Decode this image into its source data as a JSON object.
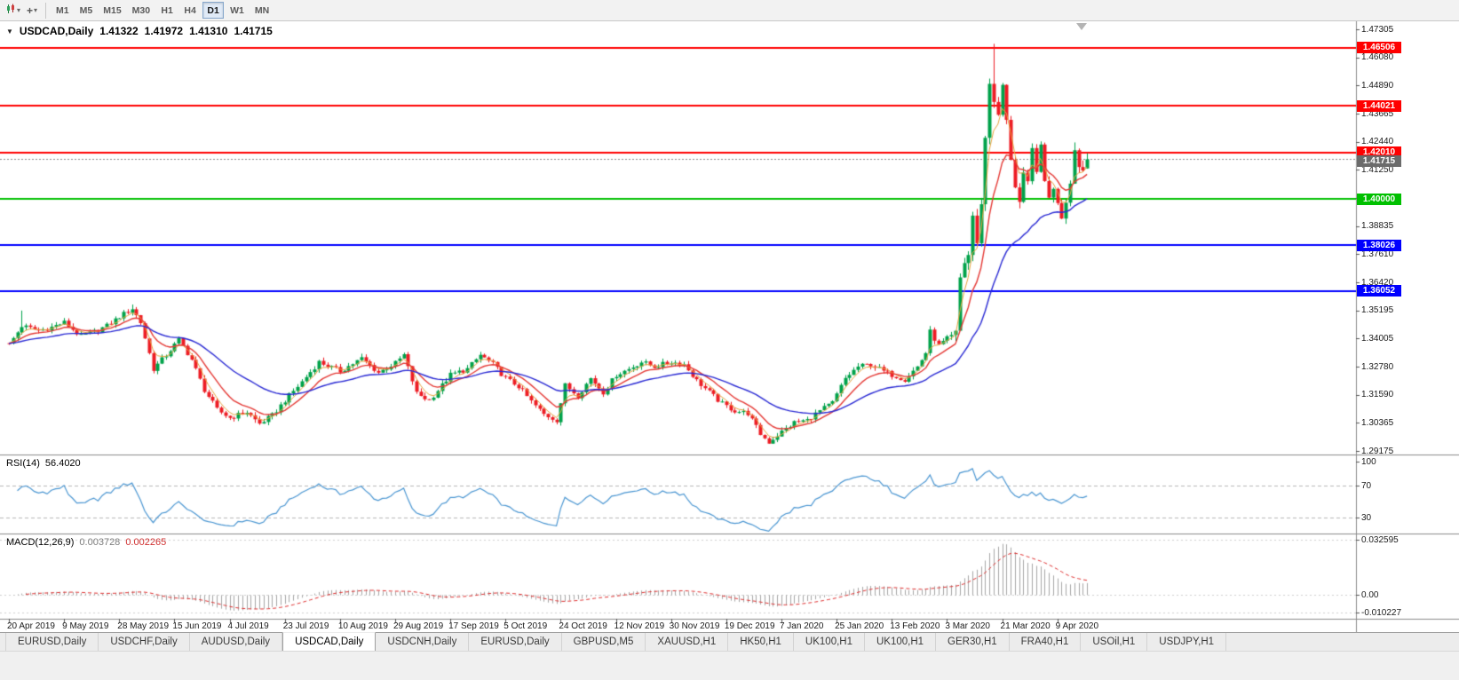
{
  "colors": {
    "candle_up": "#00A24A",
    "candle_down": "#ED1C24",
    "ma_fast": "#E8A33D",
    "ma_mid": "#E53935",
    "ma_slow": "#2A2AD4",
    "rsi_line": "#4A96D2",
    "rsi_level_dash": "#B8B8B8",
    "macd_hist": "#A6A6A6",
    "macd_signal": "#E03030",
    "line_red": "#FF0000",
    "line_green": "#00C000",
    "line_blue": "#0000FF",
    "current_price_tag": "#6B6B6B",
    "separator": "#8C8C8C"
  },
  "toolbar": {
    "icons": {
      "chart_type_caret": "▾",
      "cursor_caret": "▾",
      "crosshair_glyph": "+"
    },
    "timeframes": [
      {
        "label": "M1",
        "active": false
      },
      {
        "label": "M5",
        "active": false
      },
      {
        "label": "M15",
        "active": false
      },
      {
        "label": "M30",
        "active": false
      },
      {
        "label": "H1",
        "active": false
      },
      {
        "label": "H4",
        "active": false
      },
      {
        "label": "D1",
        "active": true
      },
      {
        "label": "W1",
        "active": false
      },
      {
        "label": "MN",
        "active": false
      }
    ]
  },
  "chart": {
    "title": {
      "dropdown_icon": "▼",
      "symbol": "USDCAD,Daily",
      "open": "1.41322",
      "high": "1.41972",
      "low": "1.41310",
      "close": "1.41715"
    },
    "price_axis_labels": [
      "1.47305",
      "1.46080",
      "1.44890",
      "1.43665",
      "1.42440",
      "1.41250",
      "1.40025",
      "1.38835",
      "1.37610",
      "1.36420",
      "1.35195",
      "1.34005",
      "1.32780",
      "1.31590",
      "1.30365",
      "1.29175"
    ]
  },
  "rsi_panel": {
    "name": "RSI(14)",
    "value": "56.4020",
    "axis_labels": [
      {
        "text": "100",
        "v": 100
      },
      {
        "text": "70",
        "v": 70
      },
      {
        "text": "30",
        "v": 30
      }
    ],
    "dashed_levels": [
      70,
      30
    ]
  },
  "macd_panel": {
    "name": "MACD(12,26,9)",
    "main_value": "0.003728",
    "signal_value": "0.002265",
    "axis_labels": [
      {
        "text": "0.032595",
        "v": 0.032595
      },
      {
        "text": "0.00",
        "v": 0
      },
      {
        "text": "-0.010227",
        "v": -0.010227
      }
    ]
  },
  "tabs": [
    {
      "label": "EURUSD,Daily",
      "active": false
    },
    {
      "label": "USDCHF,Daily",
      "active": false
    },
    {
      "label": "AUDUSD,Daily",
      "active": false
    },
    {
      "label": "USDCAD,Daily",
      "active": true
    },
    {
      "label": "USDCNH,Daily",
      "active": false
    },
    {
      "label": "EURUSD,Daily",
      "active": false
    },
    {
      "label": "GBPUSD,M5",
      "active": false
    },
    {
      "label": "XAUUSD,H1",
      "active": false
    },
    {
      "label": "HK50,H1",
      "active": false
    },
    {
      "label": "UK100,H1",
      "active": false
    },
    {
      "label": "UK100,H1",
      "active": false
    },
    {
      "label": "GER30,H1",
      "active": false
    },
    {
      "label": "FRA40,H1",
      "active": false
    },
    {
      "label": "USOil,H1",
      "active": false
    },
    {
      "label": "USDJPY,H1",
      "active": false
    }
  ],
  "chart_data": {
    "type": "candlestick",
    "symbol": "USDCAD",
    "timeframe": "Daily",
    "last_ohlc": {
      "open": 1.41322,
      "high": 1.41972,
      "low": 1.4131,
      "close": 1.41715
    },
    "y_axis": {
      "top": 1.47305,
      "bottom": 1.29175
    },
    "x_dates": [
      "20 Apr 2019",
      "9 May 2019",
      "28 May 2019",
      "15 Jun 2019",
      "4 Jul 2019",
      "23 Jul 2019",
      "10 Aug 2019",
      "29 Aug 2019",
      "17 Sep 2019",
      "5 Oct 2019",
      "24 Oct 2019",
      "12 Nov 2019",
      "30 Nov 2019",
      "19 Dec 2019",
      "7 Jan 2020",
      "25 Jan 2020",
      "13 Feb 2020",
      "3 Mar 2020",
      "21 Mar 2020",
      "9 Apr 2020"
    ],
    "bars_per_label": 13,
    "bar_count": 255,
    "close_keypoints": [
      [
        0,
        1.3375
      ],
      [
        3,
        1.3455
      ],
      [
        7,
        1.3435
      ],
      [
        10,
        1.345
      ],
      [
        13,
        1.347
      ],
      [
        17,
        1.341
      ],
      [
        20,
        1.343
      ],
      [
        23,
        1.3455
      ],
      [
        26,
        1.3495
      ],
      [
        29,
        1.353
      ],
      [
        31,
        1.347
      ],
      [
        34,
        1.327
      ],
      [
        37,
        1.333
      ],
      [
        40,
        1.3395
      ],
      [
        43,
        1.331
      ],
      [
        46,
        1.318
      ],
      [
        49,
        1.3095
      ],
      [
        52,
        1.306
      ],
      [
        56,
        1.3085
      ],
      [
        59,
        1.3035
      ],
      [
        62,
        1.307
      ],
      [
        65,
        1.3135
      ],
      [
        69,
        1.3215
      ],
      [
        73,
        1.33
      ],
      [
        78,
        1.326
      ],
      [
        83,
        1.3315
      ],
      [
        87,
        1.3255
      ],
      [
        91,
        1.3295
      ],
      [
        93,
        1.333
      ],
      [
        96,
        1.3165
      ],
      [
        99,
        1.3135
      ],
      [
        102,
        1.32
      ],
      [
        104,
        1.3245
      ],
      [
        108,
        1.327
      ],
      [
        111,
        1.333
      ],
      [
        114,
        1.329
      ],
      [
        117,
        1.323
      ],
      [
        120,
        1.3195
      ],
      [
        123,
        1.313
      ],
      [
        126,
        1.3075
      ],
      [
        129,
        1.305
      ],
      [
        131,
        1.32
      ],
      [
        134,
        1.3155
      ],
      [
        137,
        1.323
      ],
      [
        140,
        1.317
      ],
      [
        143,
        1.3245
      ],
      [
        146,
        1.327
      ],
      [
        149,
        1.33
      ],
      [
        152,
        1.328
      ],
      [
        156,
        1.33
      ],
      [
        159,
        1.329
      ],
      [
        162,
        1.322
      ],
      [
        165,
        1.317
      ],
      [
        168,
        1.312
      ],
      [
        171,
        1.309
      ],
      [
        174,
        1.308
      ],
      [
        177,
        1.299
      ],
      [
        179,
        1.2955
      ],
      [
        182,
        1.3
      ],
      [
        185,
        1.304
      ],
      [
        188,
        1.305
      ],
      [
        191,
        1.309
      ],
      [
        194,
        1.3125
      ],
      [
        197,
        1.323
      ],
      [
        200,
        1.328
      ],
      [
        203,
        1.329
      ],
      [
        206,
        1.326
      ],
      [
        208,
        1.3245
      ],
      [
        211,
        1.3225
      ],
      [
        214,
        1.328
      ],
      [
        216,
        1.334
      ],
      [
        217,
        1.343
      ],
      [
        219,
        1.337
      ],
      [
        221,
        1.34
      ],
      [
        223,
        1.342
      ],
      [
        224,
        1.366
      ],
      [
        225,
        1.373
      ],
      [
        226,
        1.376
      ],
      [
        227,
        1.393
      ],
      [
        228,
        1.38
      ],
      [
        229,
        1.399
      ],
      [
        230,
        1.426
      ],
      [
        231,
        1.45
      ],
      [
        232,
        1.443
      ],
      [
        233,
        1.435
      ],
      [
        234,
        1.449
      ],
      [
        235,
        1.433
      ],
      [
        236,
        1.418
      ],
      [
        237,
        1.406
      ],
      [
        238,
        1.3985
      ],
      [
        239,
        1.4095
      ],
      [
        240,
        1.406
      ],
      [
        241,
        1.421
      ],
      [
        242,
        1.4135
      ],
      [
        243,
        1.4215
      ],
      [
        244,
        1.4075
      ],
      [
        245,
        1.402
      ],
      [
        246,
        1.4035
      ],
      [
        247,
        1.3995
      ],
      [
        248,
        1.393
      ],
      [
        249,
        1.3995
      ],
      [
        250,
        1.4085
      ],
      [
        251,
        1.421
      ],
      [
        252,
        1.415
      ],
      [
        253,
        1.4125
      ],
      [
        254,
        1.41715
      ]
    ],
    "volatility": [
      {
        "from": 0,
        "to": 222,
        "v": 0.0018
      },
      {
        "from": 223,
        "to": 254,
        "v": 0.0035
      }
    ],
    "overrides": {
      "3": {
        "high": 1.3521
      },
      "29": {
        "high": 1.3547
      },
      "179": {
        "low": 1.295
      },
      "224": {
        "low": 1.3465
      },
      "232": {
        "high": 1.4668
      },
      "251": {
        "high": 1.4244
      },
      "254": {
        "open": 1.41322,
        "high": 1.41972,
        "low": 1.4131,
        "close": 1.41715
      }
    },
    "horizontal_lines": [
      {
        "price": 1.46506,
        "label": "1.46506",
        "color": "#FF0000",
        "width": 2
      },
      {
        "price": 1.44021,
        "label": "1.44021",
        "color": "#FF0000",
        "width": 2
      },
      {
        "price": 1.4201,
        "label": "1.42010",
        "color": "#FF0000",
        "width": 2
      },
      {
        "price": 1.4,
        "label": "1.40000",
        "color": "#00C000",
        "width": 2
      },
      {
        "price": 1.38026,
        "label": "1.38026",
        "color": "#0000FF",
        "width": 2
      },
      {
        "price": 1.36052,
        "label": "1.36052",
        "color": "#0000FF",
        "width": 2
      }
    ],
    "current_price": {
      "value": 1.41715,
      "label": "1.41715"
    },
    "moving_averages": [
      {
        "period": 4,
        "color_key": "ma_fast"
      },
      {
        "period": 10,
        "color_key": "ma_mid"
      },
      {
        "period": 30,
        "color_key": "ma_slow"
      }
    ],
    "indicators": [
      {
        "name": "RSI",
        "period": 14,
        "current": 56.402
      },
      {
        "name": "MACD",
        "fast": 12,
        "slow": 26,
        "signal": 9,
        "main": 0.003728,
        "signal_value": 0.002265
      }
    ]
  }
}
